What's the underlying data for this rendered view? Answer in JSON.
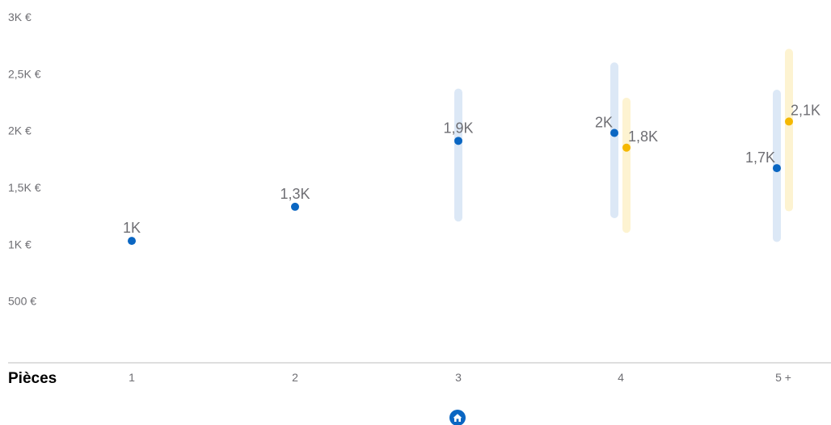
{
  "chart_data": {
    "type": "scatter",
    "xlabel": "Pièces",
    "categories": [
      "1",
      "2",
      "3",
      "4",
      "5 +"
    ],
    "ylim": [
      0,
      3000
    ],
    "y_ticks": [
      {
        "value": 500,
        "label": "500 €"
      },
      {
        "value": 1000,
        "label": "1K €"
      },
      {
        "value": 1500,
        "label": "1,5K €"
      },
      {
        "value": 2000,
        "label": "2K €"
      },
      {
        "value": 2500,
        "label": "2,5K €"
      },
      {
        "value": 3000,
        "label": "3K €"
      }
    ],
    "grid": false,
    "series": [
      {
        "color": "#0a66c2",
        "range_color": "#dce8f6",
        "points": [
          {
            "category": "1",
            "value": 1030,
            "label": "1K",
            "range": null
          },
          {
            "category": "2",
            "value": 1330,
            "label": "1,3K",
            "range": null
          },
          {
            "category": "3",
            "value": 1910,
            "label": "1,9K",
            "range": [
              1200,
              2370
            ]
          },
          {
            "category": "4",
            "value": 1980,
            "label": "2K",
            "range": [
              1230,
              2600
            ]
          },
          {
            "category": "5 +",
            "value": 1670,
            "label": "1,7K",
            "range": [
              1020,
              2360
            ]
          }
        ]
      },
      {
        "color": "#f5b800",
        "range_color": "#fdf3d1",
        "points": [
          {
            "category": "4",
            "value": 1850,
            "label": "1,8K",
            "range": [
              1100,
              2290
            ]
          },
          {
            "category": "5 +",
            "value": 2080,
            "label": "2,1K",
            "range": [
              1290,
              2720
            ]
          }
        ]
      }
    ]
  },
  "footer": {
    "icon": "home-icon",
    "icon_color": "#0a66c2"
  }
}
